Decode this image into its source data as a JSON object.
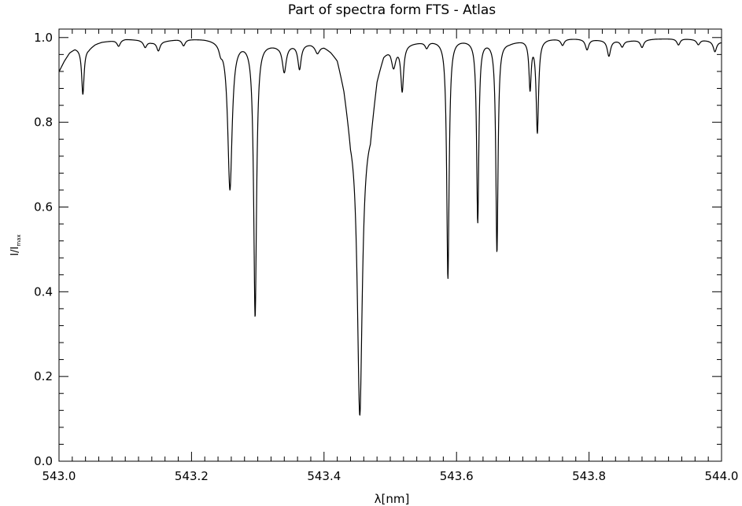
{
  "chart_data": {
    "type": "line",
    "title": "Part of spectra form FTS - Atlas",
    "xlabel": "λ[nm]",
    "ylabel": "I/I",
    "ylabel_subscript": "max",
    "xlim": [
      543.0,
      544.0
    ],
    "ylim": [
      0.0,
      1.02
    ],
    "xticks": [
      543.0,
      543.2,
      543.4,
      543.6,
      543.8,
      544.0
    ],
    "xtick_labels": [
      "543.0",
      "543.2",
      "543.4",
      "543.6",
      "543.8",
      "544.0"
    ],
    "x_minor_step": 0.02,
    "yticks": [
      0.0,
      0.2,
      0.4,
      0.6,
      0.8,
      1.0
    ],
    "ytick_labels": [
      "0.0",
      "0.2",
      "0.4",
      "0.6",
      "0.8",
      "1.0"
    ],
    "y_minor_step": 0.04,
    "grid": false,
    "continuum": [
      [
        543.0,
        0.92
      ],
      [
        543.008,
        0.945
      ],
      [
        543.016,
        0.965
      ],
      [
        543.024,
        0.975
      ],
      [
        543.045,
        0.975
      ],
      [
        543.055,
        0.985
      ],
      [
        543.065,
        0.99
      ],
      [
        543.08,
        0.993
      ],
      [
        543.1,
        0.997
      ],
      [
        543.12,
        0.995
      ],
      [
        543.14,
        0.99
      ],
      [
        543.16,
        0.993
      ],
      [
        543.18,
        0.997
      ],
      [
        543.2,
        0.998
      ],
      [
        543.22,
        0.999
      ],
      [
        543.24,
        0.998
      ],
      [
        543.275,
        0.995
      ],
      [
        543.31,
        0.99
      ],
      [
        543.33,
        0.985
      ],
      [
        543.38,
        0.99
      ],
      [
        543.4,
        0.985
      ],
      [
        543.41,
        0.975
      ],
      [
        543.42,
        0.96
      ],
      [
        543.43,
        0.9
      ],
      [
        543.44,
        0.8
      ],
      [
        543.47,
        0.8
      ],
      [
        543.48,
        0.92
      ],
      [
        543.49,
        0.97
      ],
      [
        543.5,
        0.985
      ],
      [
        543.53,
        0.99
      ],
      [
        543.56,
        0.995
      ],
      [
        543.6,
        0.998
      ],
      [
        543.64,
        0.995
      ],
      [
        543.68,
        0.99
      ],
      [
        543.7,
        0.995
      ],
      [
        543.74,
        0.998
      ],
      [
        543.78,
        0.998
      ],
      [
        543.82,
        0.995
      ],
      [
        543.86,
        0.993
      ],
      [
        543.9,
        0.997
      ],
      [
        543.94,
        0.998
      ],
      [
        543.97,
        0.995
      ],
      [
        544.0,
        0.99
      ]
    ],
    "absorption_lines": [
      {
        "center": 543.036,
        "min": 0.888,
        "width": 0.0022
      },
      {
        "center": 543.09,
        "min": 0.985,
        "width": 0.003
      },
      {
        "center": 543.13,
        "min": 0.985,
        "width": 0.003
      },
      {
        "center": 543.15,
        "min": 0.978,
        "width": 0.003
      },
      {
        "center": 543.188,
        "min": 0.985,
        "width": 0.003
      },
      {
        "center": 543.244,
        "min": 0.982,
        "width": 0.003
      },
      {
        "center": 543.258,
        "min": 0.645,
        "width": 0.004
      },
      {
        "center": 543.296,
        "min": 0.344,
        "width": 0.0026
      },
      {
        "center": 543.34,
        "min": 0.935,
        "width": 0.0035
      },
      {
        "center": 543.363,
        "min": 0.94,
        "width": 0.003
      },
      {
        "center": 543.39,
        "min": 0.98,
        "width": 0.004
      },
      {
        "center": 543.454,
        "min": 0.135,
        "width": 0.0045
      },
      {
        "center": 543.505,
        "min": 0.95,
        "width": 0.004
      },
      {
        "center": 543.518,
        "min": 0.89,
        "width": 0.0025
      },
      {
        "center": 543.555,
        "min": 0.985,
        "width": 0.003
      },
      {
        "center": 543.587,
        "min": 0.433,
        "width": 0.0022
      },
      {
        "center": 543.632,
        "min": 0.567,
        "width": 0.002
      },
      {
        "center": 543.661,
        "min": 0.497,
        "width": 0.002
      },
      {
        "center": 543.711,
        "min": 0.885,
        "width": 0.002
      },
      {
        "center": 543.722,
        "min": 0.78,
        "width": 0.0022
      },
      {
        "center": 543.76,
        "min": 0.985,
        "width": 0.003
      },
      {
        "center": 543.797,
        "min": 0.975,
        "width": 0.003
      },
      {
        "center": 543.83,
        "min": 0.962,
        "width": 0.003
      },
      {
        "center": 543.85,
        "min": 0.985,
        "width": 0.003
      },
      {
        "center": 543.88,
        "min": 0.982,
        "width": 0.003
      },
      {
        "center": 543.935,
        "min": 0.985,
        "width": 0.003
      },
      {
        "center": 543.965,
        "min": 0.988,
        "width": 0.003
      },
      {
        "center": 543.99,
        "min": 0.975,
        "width": 0.003
      }
    ]
  }
}
